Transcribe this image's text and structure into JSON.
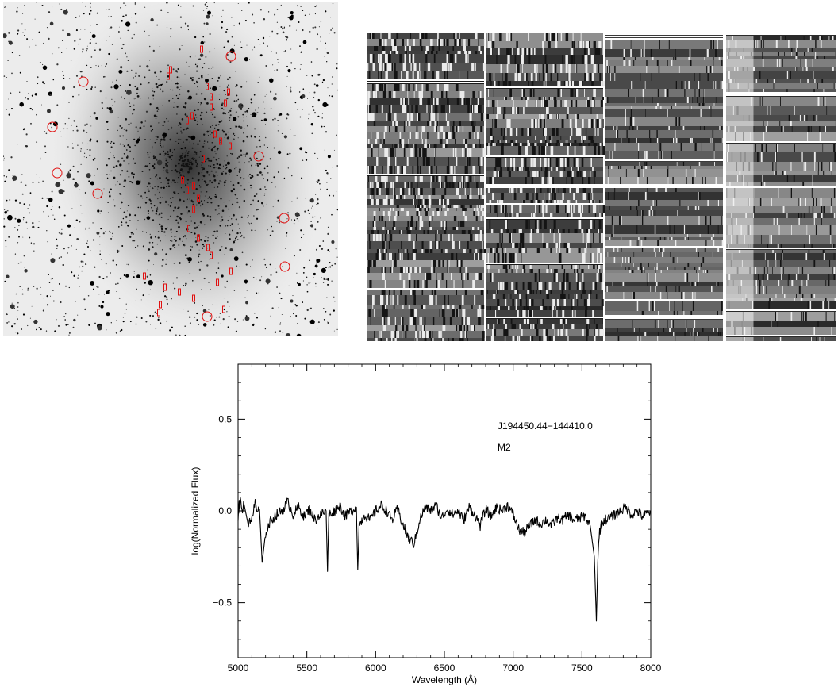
{
  "figure": {
    "panels": [
      "galaxy-field-image",
      "spectra-mosaic",
      "spectrum-plot"
    ]
  },
  "chart_data": {
    "type": "line",
    "xlabel": "Wavelength (Å)",
    "ylabel": "log(Normalized Flux)",
    "xlim": [
      5000,
      8000
    ],
    "ylim": [
      -0.8,
      0.8
    ],
    "xticks": [
      5000,
      5500,
      6000,
      6500,
      7000,
      7500,
      8000
    ],
    "yticks": [
      -0.5,
      0.0,
      0.5
    ],
    "ytick_labels": [
      "−0.5",
      "0.0",
      "0.5"
    ],
    "annotations": [
      "J194450.44−144410.0",
      "M2"
    ],
    "grid": false,
    "series": [
      {
        "x": [
          5000,
          5040,
          5080,
          5120,
          5160,
          5175,
          5200,
          5240,
          5280,
          5320,
          5360,
          5400,
          5440,
          5480,
          5520,
          5560,
          5600,
          5640,
          5650,
          5660,
          5700,
          5740,
          5780,
          5820,
          5860,
          5870,
          5880,
          5920,
          5960,
          6000,
          6040,
          6080,
          6120,
          6160,
          6200,
          6240,
          6280,
          6320,
          6360,
          6400,
          6440,
          6480,
          6520,
          6560,
          6600,
          6640,
          6680,
          6720,
          6760,
          6800,
          6840,
          6880,
          6920,
          6960,
          7000,
          7040,
          7080,
          7120,
          7160,
          7200,
          7240,
          7280,
          7320,
          7360,
          7400,
          7440,
          7480,
          7520,
          7560,
          7590,
          7605,
          7615,
          7625,
          7640,
          7660,
          7700,
          7740,
          7780,
          7820,
          7860,
          7900,
          7940,
          7980,
          8000
        ],
        "y": [
          0.0,
          0.05,
          -0.1,
          0.03,
          -0.05,
          -0.28,
          -0.12,
          -0.05,
          -0.02,
          0.0,
          0.05,
          -0.02,
          0.02,
          -0.03,
          0.01,
          -0.05,
          -0.02,
          0.0,
          -0.33,
          -0.02,
          0.0,
          0.03,
          -0.03,
          0.0,
          0.02,
          -0.32,
          -0.08,
          -0.02,
          -0.05,
          0.0,
          0.03,
          0.0,
          -0.05,
          0.01,
          -0.08,
          -0.15,
          -0.18,
          -0.05,
          0.02,
          0.0,
          0.03,
          -0.04,
          0.01,
          -0.02,
          0.0,
          -0.05,
          0.02,
          -0.02,
          -0.08,
          0.01,
          -0.03,
          0.02,
          0.0,
          0.03,
          -0.02,
          -0.1,
          -0.12,
          -0.08,
          -0.05,
          -0.07,
          -0.05,
          -0.08,
          -0.04,
          -0.05,
          -0.02,
          -0.05,
          -0.04,
          -0.03,
          -0.08,
          -0.25,
          -0.6,
          -0.28,
          -0.12,
          -0.08,
          -0.05,
          -0.04,
          -0.02,
          0.0,
          0.02,
          -0.02,
          0.0,
          -0.03,
          -0.01,
          0.0
        ]
      }
    ]
  }
}
